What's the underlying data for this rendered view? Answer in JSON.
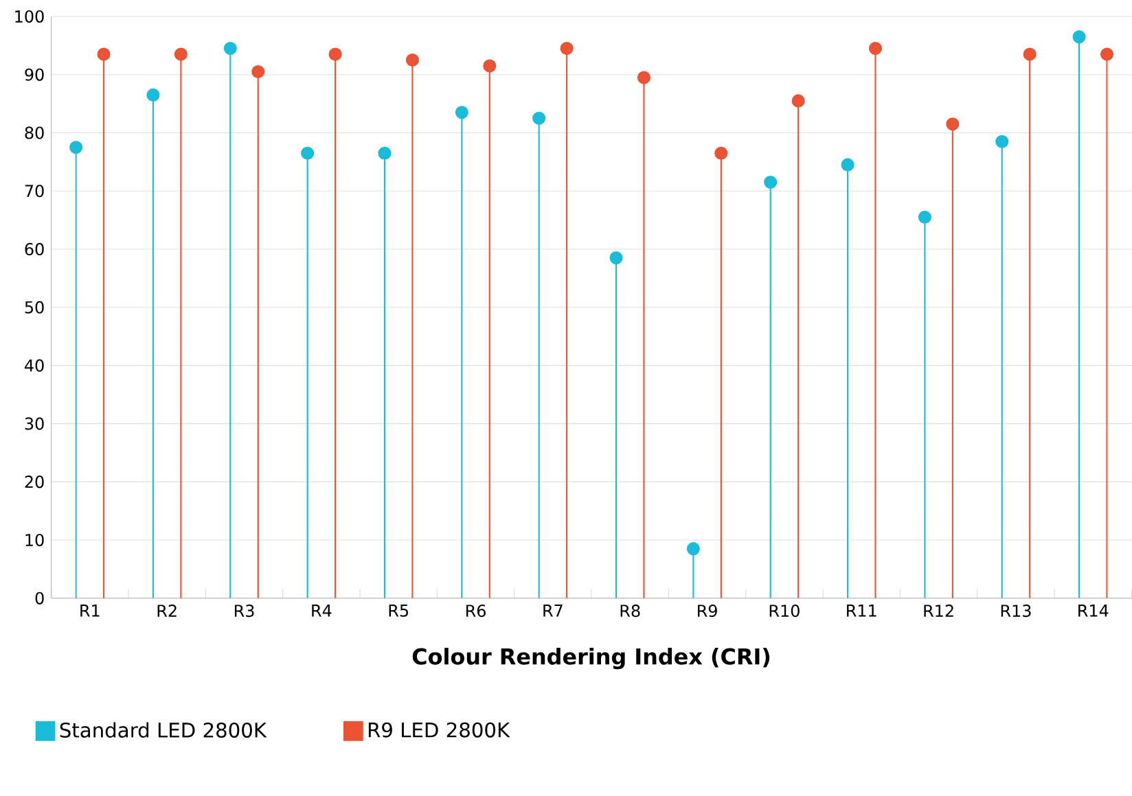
{
  "chart_data": {
    "type": "lollipop",
    "xlabel": "Colour Rendering Index (CRI)",
    "categories": [
      "R1",
      "R2",
      "R3",
      "R4",
      "R5",
      "R6",
      "R7",
      "R8",
      "R9",
      "R10",
      "R11",
      "R12",
      "R13",
      "R14"
    ],
    "series": [
      {
        "name": "Standard LED 2800K",
        "color": "#1bbcd9",
        "values": [
          77.5,
          86.5,
          94.5,
          76.5,
          76.5,
          83.5,
          82.5,
          58.5,
          8.5,
          71.5,
          74.5,
          65.5,
          78.5,
          96.5
        ]
      },
      {
        "name": "R9 LED 2800K",
        "color": "#ea5333",
        "values": [
          93.5,
          93.5,
          90.5,
          93.5,
          92.5,
          91.5,
          94.5,
          89.5,
          76.5,
          85.5,
          94.5,
          81.5,
          93.5,
          93.5
        ]
      }
    ],
    "ylim": [
      0,
      100
    ],
    "yticks": [
      0,
      10,
      20,
      30,
      40,
      50,
      60,
      70,
      80,
      90,
      100
    ],
    "grid": "y",
    "legend": "bottom",
    "marker": "circle"
  }
}
